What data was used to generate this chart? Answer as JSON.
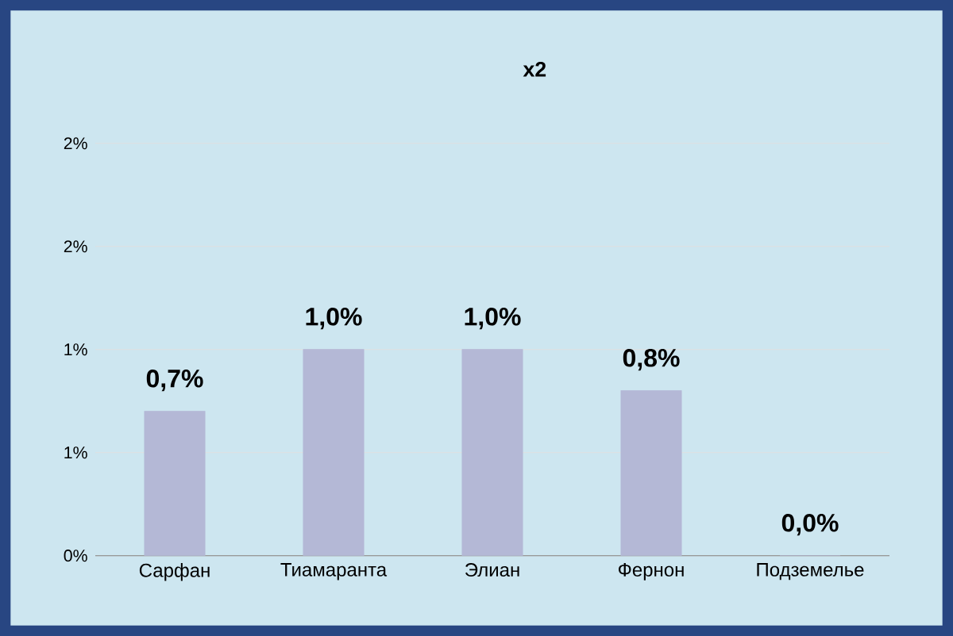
{
  "chart_data": {
    "type": "bar",
    "title": "x2",
    "categories": [
      "Сарфан",
      "Тиамаранта",
      "Элиан",
      "Фернон",
      "Подземелье"
    ],
    "values": [
      0.7,
      1.0,
      1.0,
      0.8,
      0.0
    ],
    "value_labels": [
      "0,7%",
      "1,0%",
      "1,0%",
      "0,8%",
      "0,0%"
    ],
    "color": "#b4b8d6",
    "ylim": [
      0,
      2
    ],
    "yticks": [
      {
        "value": 0,
        "label": "0%"
      },
      {
        "value": 0.5,
        "label": "1%"
      },
      {
        "value": 1,
        "label": "1%"
      },
      {
        "value": 1.5,
        "label": "2%"
      },
      {
        "value": 2,
        "label": "2%"
      }
    ],
    "grid": "y"
  }
}
